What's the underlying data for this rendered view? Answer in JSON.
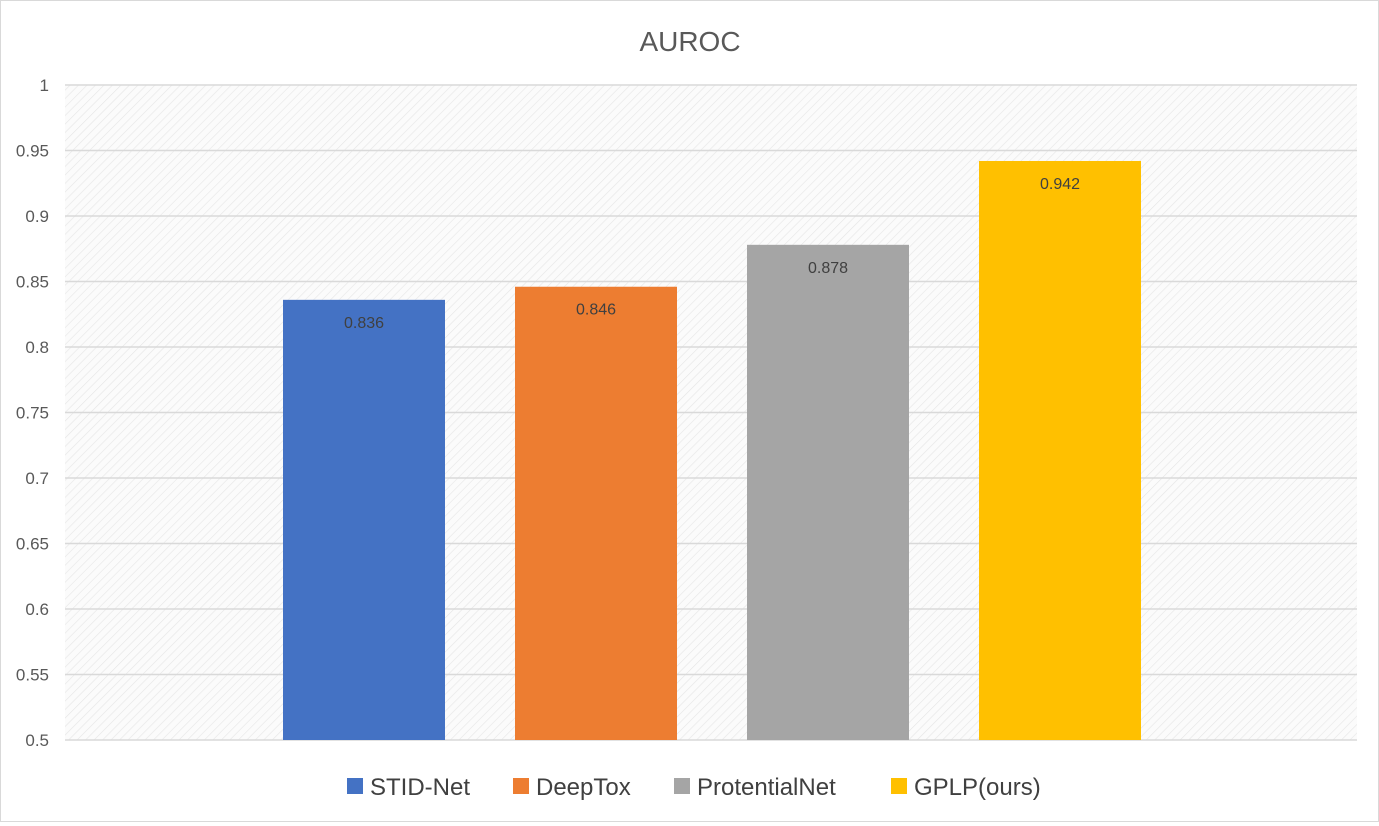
{
  "chart_data": {
    "type": "bar",
    "title": "AUROC",
    "xlabel": "",
    "ylabel": "",
    "ylim": [
      0.5,
      1
    ],
    "yticks": [
      "0.5",
      "0.55",
      "0.6",
      "0.65",
      "0.7",
      "0.75",
      "0.8",
      "0.85",
      "0.9",
      "0.95",
      "1"
    ],
    "grid": true,
    "legend_position": "bottom",
    "series": [
      {
        "name": "STID-Net",
        "value": 0.836,
        "label": "0.836",
        "color": "#4472C4"
      },
      {
        "name": "DeepTox",
        "value": 0.846,
        "label": "0.846",
        "color": "#ED7D31"
      },
      {
        "name": "ProtentialNet",
        "value": 0.878,
        "label": "0.878",
        "color": "#A5A5A5"
      },
      {
        "name": "GPLP(ours)",
        "value": 0.942,
        "label": "0.942",
        "color": "#FFC000"
      }
    ]
  }
}
